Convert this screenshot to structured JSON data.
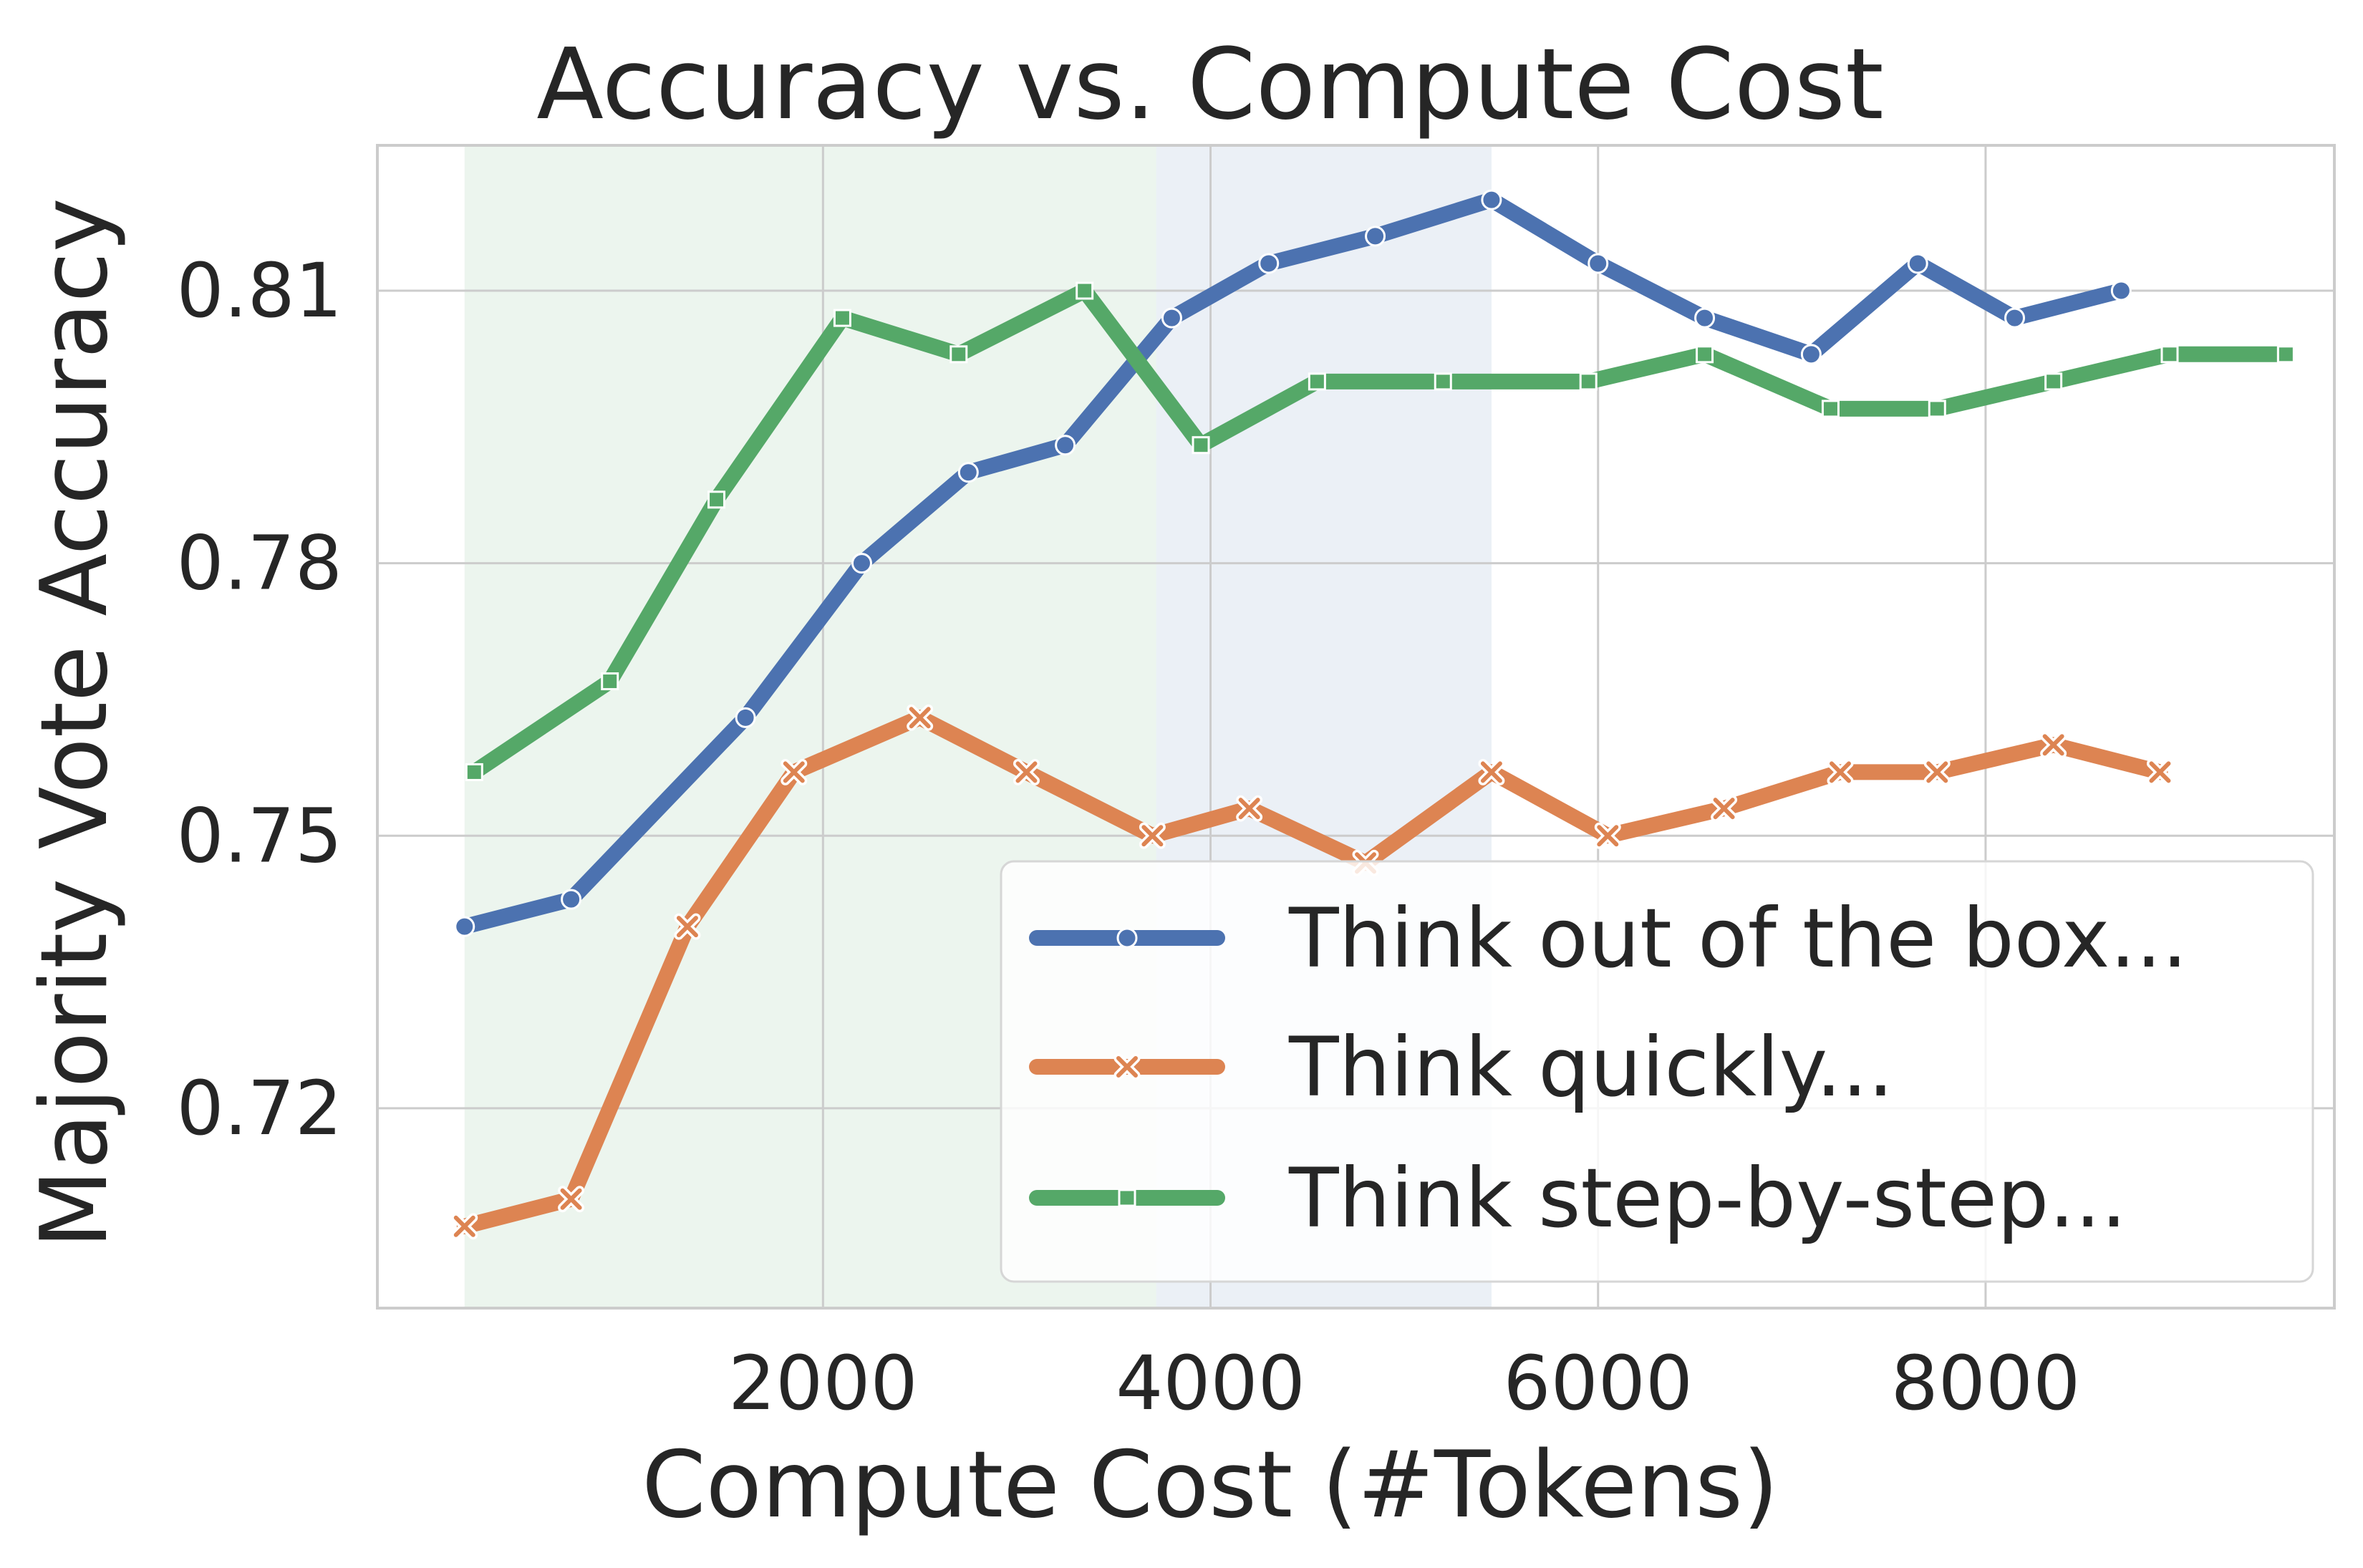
{
  "chart_data": {
    "type": "line",
    "title": "Accuracy vs. Compute Cost",
    "xlabel": "Compute Cost (#Tokens)",
    "ylabel": "Majority Vote Accuracy",
    "xlim": [
      -300,
      9800
    ],
    "ylim": [
      0.698,
      0.826
    ],
    "xticks": [
      2000,
      4000,
      6000,
      8000
    ],
    "xtick_labels": [
      "2000",
      "4000",
      "6000",
      "8000"
    ],
    "yticks": [
      0.72,
      0.75,
      0.78,
      0.81
    ],
    "ytick_labels": [
      "0.72",
      "0.75",
      "0.78",
      "0.81"
    ],
    "grid": true,
    "legend_position": "lower-right",
    "shaded_regions": [
      {
        "x_start": 150,
        "x_end": 3720,
        "color": "#55a868",
        "opacity": 0.11
      },
      {
        "x_start": 3720,
        "x_end": 5450,
        "color": "#4c72b0",
        "opacity": 0.11
      }
    ],
    "series": [
      {
        "name": "Think out of the box...",
        "color": "#4c72b0",
        "marker": "circle",
        "points": [
          [
            150,
            0.74
          ],
          [
            700,
            0.743
          ],
          [
            1600,
            0.763
          ],
          [
            2200,
            0.78
          ],
          [
            2750,
            0.79
          ],
          [
            3250,
            0.793
          ],
          [
            3800,
            0.807
          ],
          [
            4300,
            0.813
          ],
          [
            4850,
            0.816
          ],
          [
            5450,
            0.82
          ],
          [
            6000,
            0.813
          ],
          [
            6550,
            0.807
          ],
          [
            7100,
            0.803
          ],
          [
            7650,
            0.813
          ],
          [
            8150,
            0.807
          ],
          [
            8700,
            0.81
          ]
        ]
      },
      {
        "name": "Think quickly...",
        "color": "#dd8452",
        "marker": "x",
        "points": [
          [
            150,
            0.707
          ],
          [
            700,
            0.71
          ],
          [
            1300,
            0.74
          ],
          [
            1850,
            0.757
          ],
          [
            2500,
            0.763
          ],
          [
            3050,
            0.757
          ],
          [
            3700,
            0.75
          ],
          [
            4200,
            0.753
          ],
          [
            4800,
            0.747
          ],
          [
            5450,
            0.757
          ],
          [
            6050,
            0.75
          ],
          [
            6650,
            0.753
          ],
          [
            7250,
            0.757
          ],
          [
            7750,
            0.757
          ],
          [
            8350,
            0.76
          ],
          [
            8900,
            0.757
          ]
        ]
      },
      {
        "name": "Think step-by-step...",
        "color": "#55a868",
        "marker": "square",
        "points": [
          [
            200,
            0.757
          ],
          [
            900,
            0.767
          ],
          [
            1450,
            0.787
          ],
          [
            2100,
            0.807
          ],
          [
            2700,
            0.803
          ],
          [
            3350,
            0.81
          ],
          [
            3950,
            0.793
          ],
          [
            4550,
            0.8
          ],
          [
            5200,
            0.8
          ],
          [
            5950,
            0.8
          ],
          [
            6550,
            0.803
          ],
          [
            7200,
            0.797
          ],
          [
            7750,
            0.797
          ],
          [
            8350,
            0.8
          ],
          [
            8950,
            0.803
          ],
          [
            9550,
            0.803
          ]
        ]
      }
    ]
  }
}
